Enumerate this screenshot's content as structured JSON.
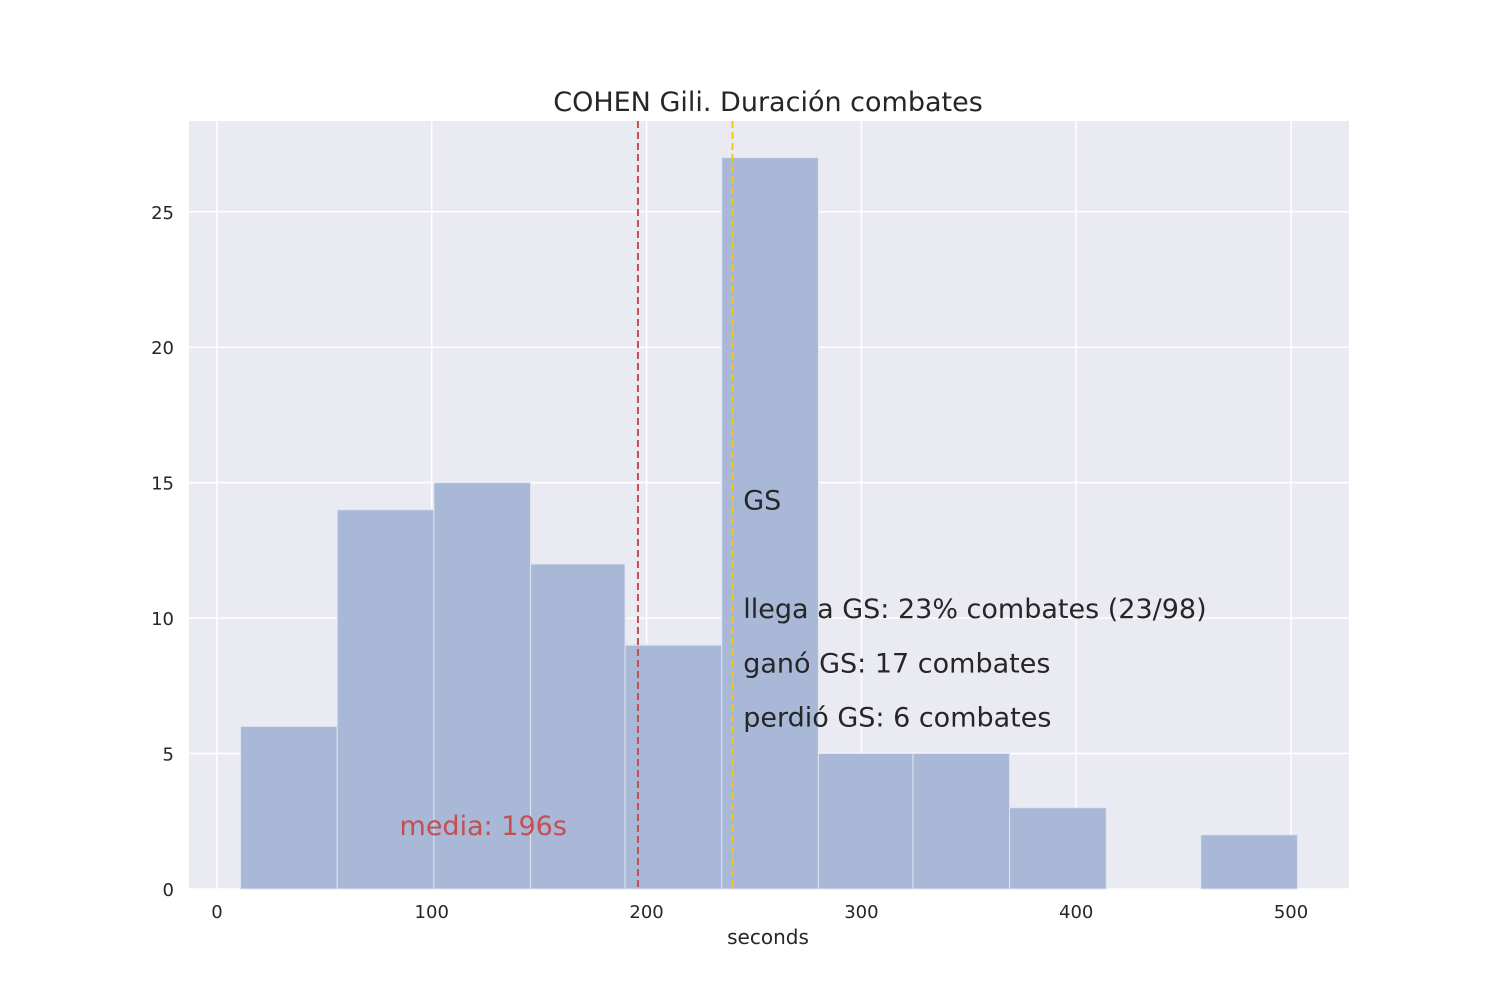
{
  "chart_data": {
    "type": "bar",
    "subtype": "histogram",
    "title": "COHEN Gili. Duración combates",
    "xlabel": "seconds",
    "ylabel": "",
    "xlim": [
      -13,
      527
    ],
    "ylim": [
      0,
      28.35
    ],
    "xticks": [
      0,
      100,
      200,
      300,
      400,
      500
    ],
    "yticks": [
      0,
      5,
      10,
      15,
      20,
      25
    ],
    "grid": true,
    "bins": [
      {
        "x0": 11,
        "x1": 56,
        "count": 6
      },
      {
        "x0": 56,
        "x1": 101,
        "count": 14
      },
      {
        "x0": 101,
        "x1": 146,
        "count": 15
      },
      {
        "x0": 146,
        "x1": 190,
        "count": 12
      },
      {
        "x0": 190,
        "x1": 235,
        "count": 9
      },
      {
        "x0": 235,
        "x1": 280,
        "count": 27
      },
      {
        "x0": 280,
        "x1": 324,
        "count": 5
      },
      {
        "x0": 324,
        "x1": 369,
        "count": 5
      },
      {
        "x0": 369,
        "x1": 414,
        "count": 3
      },
      {
        "x0": 414,
        "x1": 458,
        "count": 0
      },
      {
        "x0": 458,
        "x1": 503,
        "count": 2
      }
    ],
    "bar_color": "#a9b8d6",
    "mean_line": {
      "x": 196,
      "color": "#c44e52",
      "label": "media: 196s",
      "label_x": 85,
      "label_y": 2
    },
    "gs_line": {
      "x": 240,
      "color": "#f5c518"
    },
    "annotations": [
      {
        "text": "GS",
        "x": 245,
        "y": 14
      },
      {
        "text": "llega a GS: 23% combates (23/98)",
        "x": 245,
        "y": 10
      },
      {
        "text": "ganó GS: 17 combates",
        "x": 245,
        "y": 8
      },
      {
        "text": "perdió GS: 6 combates",
        "x": 245,
        "y": 6
      }
    ]
  }
}
